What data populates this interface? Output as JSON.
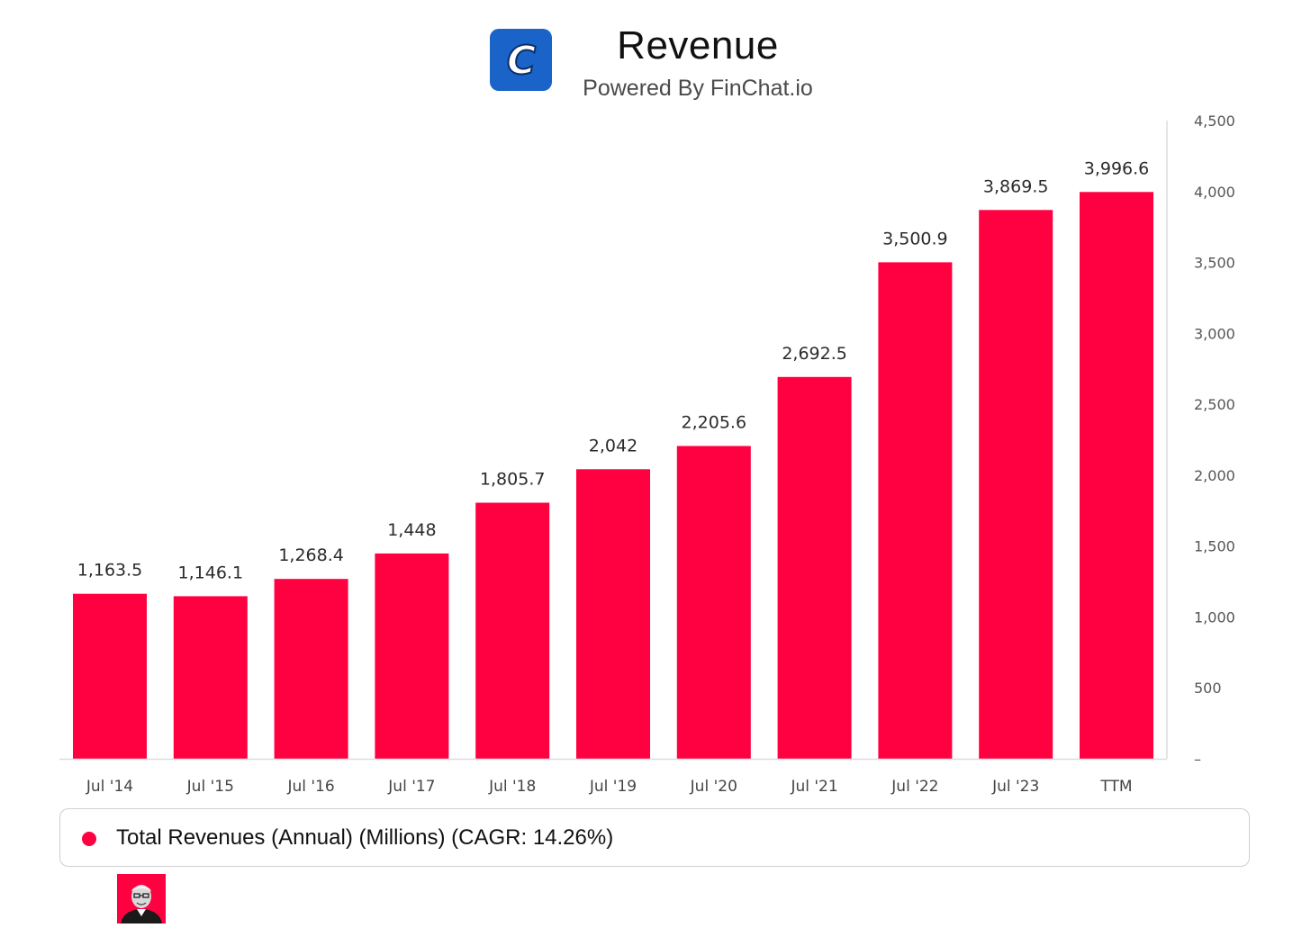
{
  "header": {
    "title": "Revenue",
    "subtitle": "Powered By FinChat.io",
    "logo_letter": "C",
    "logo_icon": "finchat-logo"
  },
  "colors": {
    "bar": "#ff0040",
    "logo_bg": "#1a63c9",
    "axis": "#dddddd"
  },
  "chart_data": {
    "type": "bar",
    "title": "Revenue",
    "categories": [
      "Jul '14",
      "Jul '15",
      "Jul '16",
      "Jul '17",
      "Jul '18",
      "Jul '19",
      "Jul '20",
      "Jul '21",
      "Jul '22",
      "Jul '23",
      "TTM"
    ],
    "series": [
      {
        "name": "Total Revenues (Annual) (Millions) (CAGR: 14.26%)",
        "values": [
          1163.5,
          1146.1,
          1268.4,
          1448,
          1805.7,
          2042,
          2205.6,
          2692.5,
          3500.9,
          3869.5,
          3996.6
        ],
        "labels": [
          "1,163.5",
          "1,146.1",
          "1,268.4",
          "1,448",
          "1,805.7",
          "2,042",
          "2,205.6",
          "2,692.5",
          "3,500.9",
          "3,869.5",
          "3,996.6"
        ]
      }
    ],
    "y_ticks": [
      0,
      500,
      1000,
      1500,
      2000,
      2500,
      3000,
      3500,
      4000,
      4500
    ],
    "y_tick_labels": [
      "–",
      "500",
      "1,000",
      "1,500",
      "2,000",
      "2,500",
      "3,000",
      "3,500",
      "4,000",
      "4,500"
    ],
    "ylim": [
      0,
      4500
    ],
    "y_axis_position": "right",
    "grid": false,
    "legend_position": "bottom"
  },
  "legend": {
    "text": "Total Revenues (Annual) (Millions) (CAGR: 14.26%)"
  },
  "avatar": {
    "icon": "person-avatar-icon"
  }
}
